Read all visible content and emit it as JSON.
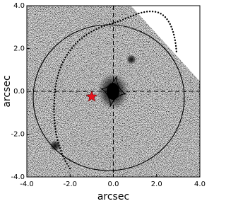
{
  "chart_data": {
    "type": "scatter",
    "xlabel": "arcsec",
    "ylabel": "arcsec",
    "xlim": [
      -4,
      4
    ],
    "ylim": [
      -4,
      4
    ],
    "xticks": [
      {
        "value": -4,
        "label": "-4.0"
      },
      {
        "value": -2,
        "label": "-2.0"
      },
      {
        "value": 0,
        "label": "0.0"
      },
      {
        "value": 2,
        "label": "2.0"
      },
      {
        "value": 4,
        "label": "4.0"
      }
    ],
    "yticks": [
      {
        "value": -4,
        "label": "-4.0"
      },
      {
        "value": -2,
        "label": "-2.0"
      },
      {
        "value": 0,
        "label": "0.0"
      },
      {
        "value": 2,
        "label": "2.0"
      },
      {
        "value": 4,
        "label": "4.0"
      }
    ],
    "series": [
      {
        "color": "#e8141e",
        "marker": "star",
        "x": [
          -1.0
        ],
        "values": [
          -0.25
        ]
      }
    ]
  }
}
